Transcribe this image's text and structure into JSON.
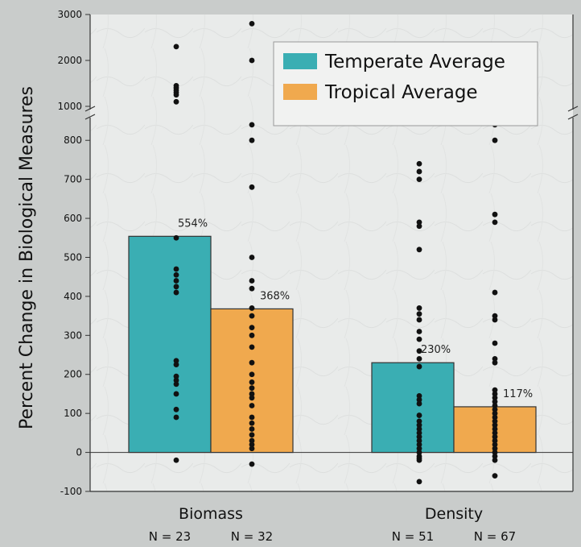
{
  "chart_data": {
    "type": "bar",
    "title": "",
    "ylabel": "Percent Change in Biological Measures",
    "xlabel": "",
    "ylim": [
      -100,
      3000
    ],
    "y_axis_break": [
      850,
      1000
    ],
    "y_ticks_lower": [
      "-100",
      "0",
      "100",
      "200",
      "300",
      "400",
      "500",
      "600",
      "700",
      "800"
    ],
    "y_ticks_upper": [
      "1000",
      "2000",
      "3000"
    ],
    "categories": [
      "Biomass",
      "Density"
    ],
    "category_counts": [
      [
        "N = 23",
        "N = 32"
      ],
      [
        "N = 51",
        "N = 67"
      ]
    ],
    "legend_position": "top-right",
    "series": [
      {
        "name": "Temperate Average",
        "color": "#3aaeb3",
        "values": [
          554,
          230
        ],
        "value_labels": [
          "554%",
          "230%"
        ],
        "points": [
          [
            2300,
            1450,
            1400,
            1350,
            1300,
            1250,
            1100,
            550,
            470,
            455,
            440,
            425,
            410,
            235,
            225,
            195,
            185,
            175,
            150,
            110,
            90,
            -20
          ],
          [
            2250,
            740,
            720,
            700,
            590,
            580,
            520,
            370,
            355,
            340,
            310,
            290,
            260,
            240,
            220,
            145,
            135,
            125,
            95,
            80,
            70,
            60,
            50,
            40,
            30,
            20,
            10,
            0,
            -10,
            -15,
            -20,
            -75
          ]
        ]
      },
      {
        "name": "Tropical Average",
        "color": "#f0a94e",
        "values": [
          368,
          117
        ],
        "value_labels": [
          "368%",
          "117%"
        ],
        "points": [
          [
            2800,
            2000,
            840,
            800,
            680,
            500,
            440,
            420,
            370,
            350,
            320,
            300,
            270,
            230,
            200,
            180,
            165,
            150,
            140,
            120,
            90,
            75,
            60,
            45,
            30,
            20,
            10,
            -30
          ],
          [
            840,
            800,
            610,
            590,
            410,
            350,
            340,
            280,
            240,
            230,
            160,
            150,
            140,
            130,
            120,
            110,
            100,
            90,
            80,
            70,
            60,
            50,
            40,
            30,
            20,
            10,
            0,
            -10,
            -20,
            -60
          ]
        ]
      }
    ]
  }
}
